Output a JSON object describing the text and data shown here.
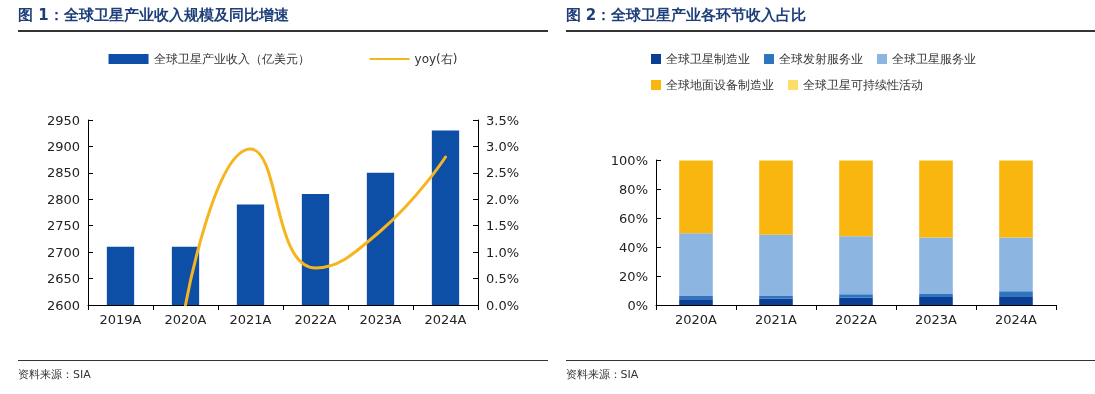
{
  "chart_data": [
    {
      "type": "bar",
      "title": "图 1：全球卫星产业收入规模及同比增速",
      "categories": [
        "2019A",
        "2020A",
        "2021A",
        "2022A",
        "2023A",
        "2024A"
      ],
      "series": [
        {
          "name": "全球卫星产业收入（亿美元）",
          "color": "#0d4ea6",
          "values": [
            2710,
            2710,
            2790,
            2810,
            2850,
            2930
          ]
        },
        {
          "name": "yoy(右)",
          "type": "line",
          "axis": "y2",
          "color": "#f5b51f",
          "values": [
            null,
            0.0,
            2.95,
            0.7,
            1.4,
            2.8
          ]
        }
      ],
      "ylim": [
        2600,
        2950
      ],
      "yticks": [
        2600,
        2650,
        2700,
        2750,
        2800,
        2850,
        2900,
        2950
      ],
      "y2lim": [
        0,
        3.5
      ],
      "y2ticks": [
        {
          "value": 0,
          "label": "0.0%"
        },
        {
          "value": 0.5,
          "label": "0.5%"
        },
        {
          "value": 1,
          "label": "1.0%"
        },
        {
          "value": 1.5,
          "label": "1.5%"
        },
        {
          "value": 2,
          "label": "2.0%"
        },
        {
          "value": 2.5,
          "label": "2.5%"
        },
        {
          "value": 3,
          "label": "3.0%"
        },
        {
          "value": 3.5,
          "label": "3.5%"
        }
      ],
      "grid": false,
      "legend": "top",
      "marker": "none",
      "line_style": "solid",
      "annotations": [
        "资料来源：SIA"
      ]
    },
    {
      "type": "bar",
      "title": "图 2：全球卫星产业各环节收入占比",
      "categories": [
        "2020A",
        "2021A",
        "2022A",
        "2023A",
        "2024A"
      ],
      "stacked": true,
      "series": [
        {
          "name": "全球卫星制造业",
          "color": "#0b3f95",
          "values": [
            4,
            4.5,
            5,
            5.5,
            6
          ]
        },
        {
          "name": "全球发射服务业",
          "color": "#2f74c0",
          "values": [
            2.5,
            2,
            2.5,
            2.5,
            3.5
          ]
        },
        {
          "name": "全球卫星服务业",
          "color": "#8db5e2",
          "values": [
            43,
            42,
            40,
            38.5,
            37
          ]
        },
        {
          "name": "全球地面设备制造业",
          "color": "#f8b60f",
          "values": [
            50,
            51,
            52,
            53,
            53
          ]
        },
        {
          "name": "全球卫星可持续性活动",
          "color": "#fddc6a",
          "values": [
            0.5,
            0.5,
            0.5,
            0.5,
            0.5
          ]
        }
      ],
      "ylim": [
        0,
        100
      ],
      "yticks": [
        {
          "value": 0,
          "label": "0%"
        },
        {
          "value": 20,
          "label": "20%"
        },
        {
          "value": 40,
          "label": "40%"
        },
        {
          "value": 60,
          "label": "60%"
        },
        {
          "value": 80,
          "label": "80%"
        },
        {
          "value": 100,
          "label": "100%"
        }
      ],
      "grid": false,
      "legend": "top",
      "annotations": [
        "资料来源：SIA"
      ]
    }
  ]
}
